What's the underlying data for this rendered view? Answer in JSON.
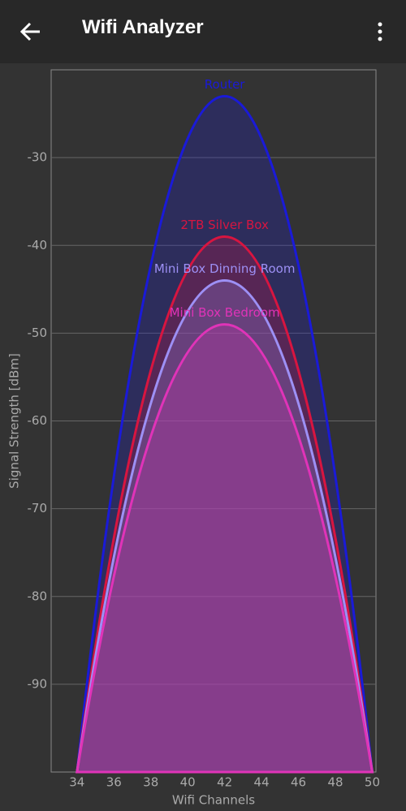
{
  "header": {
    "title": "Wifi Analyzer"
  },
  "chart_data": {
    "type": "line",
    "x_label": "Wifi Channels",
    "y_label": "Signal Strength [dBm]",
    "x": [
      34,
      42,
      50
    ],
    "series": [
      {
        "name": "Router",
        "color": "#1a1ad8",
        "values": [
          -100,
          -23,
          -100
        ]
      },
      {
        "name": "2TB Silver Box",
        "color": "#d81540",
        "values": [
          -100,
          -39,
          -100
        ]
      },
      {
        "name": "Mini Box Dinning Room",
        "color": "#9d90f5",
        "values": [
          -100,
          -44,
          -100
        ]
      },
      {
        "name": "Mini Box Bedroom",
        "color": "#e033b8",
        "values": [
          -100,
          -49,
          -100
        ]
      }
    ],
    "xlim": [
      32.6,
      50.2
    ],
    "ylim": [
      -100,
      -20
    ],
    "xticks": [
      34,
      36,
      38,
      40,
      42,
      44,
      46,
      48,
      50
    ],
    "yticks": [
      -30,
      -40,
      -50,
      -60,
      -70,
      -80,
      -90
    ],
    "grid": true
  }
}
